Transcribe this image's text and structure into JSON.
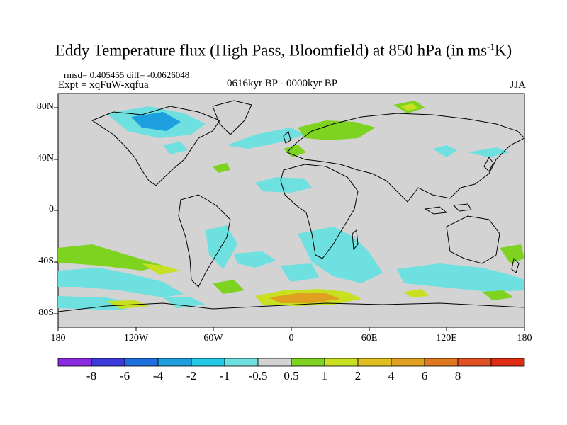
{
  "title": {
    "main": "Eddy Temperature flux (High Pass, Bloomfield) at 850 hPa (in ms",
    "sup": "-1",
    "end": "K)"
  },
  "stats": "rmsd= 0.405455  diff= -0.0626048",
  "experiment": "Expt = xqFuW-xqfua",
  "period": "0616kyr BP - 0000kyr BP",
  "season": "JJA",
  "map": {
    "lat_ticks": [
      "80N",
      "40N",
      "0",
      "40S",
      "80S"
    ],
    "lon_ticks": [
      "180",
      "120W",
      "60W",
      "0",
      "60E",
      "120E",
      "180"
    ],
    "background": "#d3d3d3"
  },
  "colorbar": {
    "colors": [
      "#8a2be2",
      "#3b3bdc",
      "#1e6fe0",
      "#1e9fe0",
      "#22c8e6",
      "#6ee0e0",
      "#d3d3d3",
      "#7ed321",
      "#c8e020",
      "#e0c020",
      "#e0a020",
      "#e07820",
      "#e05020",
      "#e02c10"
    ],
    "labels": [
      "-8",
      "-6",
      "-4",
      "-2",
      "-1",
      "-0.5",
      "0.5",
      "1",
      "2",
      "4",
      "6",
      "8"
    ]
  }
}
